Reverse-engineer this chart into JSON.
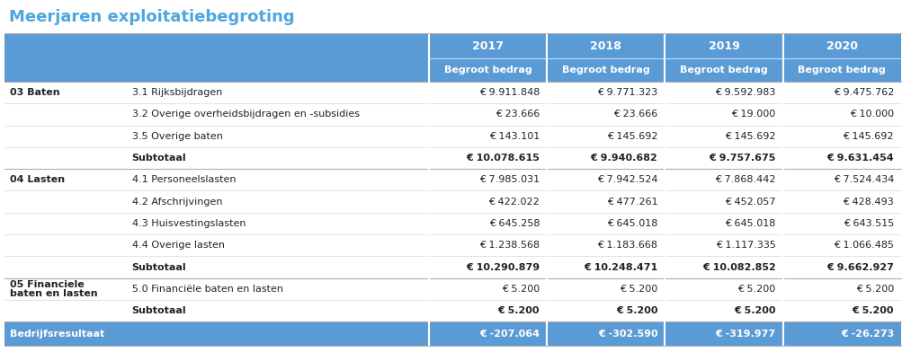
{
  "title": "Meerjaren exploitatiebegroting",
  "title_color": "#4da6e0",
  "header_bg": "#5b9bd5",
  "header_text_color": "#ffffff",
  "bedrijf_bg": "#5b9bd5",
  "bedrijf_text_color": "#ffffff",
  "years": [
    "2017",
    "2018",
    "2019",
    "2020"
  ],
  "subheader": "Begroot bedrag",
  "rows": [
    {
      "cat": "03 Baten",
      "desc": "3.1 Rijksbijdragen",
      "vals": [
        "€ 9.911.848",
        "€ 9.771.323",
        "€ 9.592.983",
        "€ 9.475.762"
      ],
      "type": "data"
    },
    {
      "cat": "",
      "desc": "3.2 Overige overheidsbijdragen en -subsidies",
      "vals": [
        "€ 23.666",
        "€ 23.666",
        "€ 19.000",
        "€ 10.000"
      ],
      "type": "data"
    },
    {
      "cat": "",
      "desc": "3.5 Overige baten",
      "vals": [
        "€ 143.101",
        "€ 145.692",
        "€ 145.692",
        "€ 145.692"
      ],
      "type": "data"
    },
    {
      "cat": "",
      "desc": "Subtotaal",
      "vals": [
        "€ 10.078.615",
        "€ 9.940.682",
        "€ 9.757.675",
        "€ 9.631.454"
      ],
      "type": "subtotal"
    },
    {
      "cat": "04 Lasten",
      "desc": "4.1 Personeelslasten",
      "vals": [
        "€ 7.985.031",
        "€ 7.942.524",
        "€ 7.868.442",
        "€ 7.524.434"
      ],
      "type": "data"
    },
    {
      "cat": "",
      "desc": "4.2 Afschrijvingen",
      "vals": [
        "€ 422.022",
        "€ 477.261",
        "€ 452.057",
        "€ 428.493"
      ],
      "type": "data"
    },
    {
      "cat": "",
      "desc": "4.3 Huisvestingslasten",
      "vals": [
        "€ 645.258",
        "€ 645.018",
        "€ 645.018",
        "€ 643.515"
      ],
      "type": "data"
    },
    {
      "cat": "",
      "desc": "4.4 Overige lasten",
      "vals": [
        "€ 1.238.568",
        "€ 1.183.668",
        "€ 1.117.335",
        "€ 1.066.485"
      ],
      "type": "data"
    },
    {
      "cat": "",
      "desc": "Subtotaal",
      "vals": [
        "€ 10.290.879",
        "€ 10.248.471",
        "€ 10.082.852",
        "€ 9.662.927"
      ],
      "type": "subtotal"
    },
    {
      "cat": "05 Financiele\nbaten en lasten",
      "desc": "5.0 Financiële baten en lasten",
      "vals": [
        "€ 5.200",
        "€ 5.200",
        "€ 5.200",
        "€ 5.200"
      ],
      "type": "data"
    },
    {
      "cat": "",
      "desc": "Subtotaal",
      "vals": [
        "€ 5.200",
        "€ 5.200",
        "€ 5.200",
        "€ 5.200"
      ],
      "type": "subtotal"
    },
    {
      "cat": "Bedrijfsresultaat",
      "desc": "",
      "vals": [
        "€ -207.064",
        "€ -302.590",
        "€ -319.977",
        "€ -26.273"
      ],
      "type": "bedrijf"
    }
  ]
}
